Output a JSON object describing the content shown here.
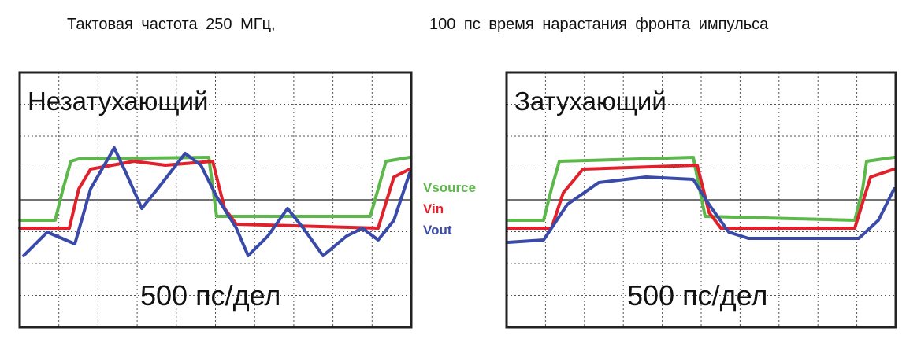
{
  "header": {
    "left": "Тактовая частота 250 МГц,",
    "right": "100 пс время нарастания фронта импульса"
  },
  "panels": [
    {
      "title": "Незатухающий",
      "scale": "500 пс/дел"
    },
    {
      "title": "Затухающий",
      "scale": "500 пс/дел"
    }
  ],
  "legend": [
    "Vsource",
    "Vin",
    "Vout"
  ]
}
